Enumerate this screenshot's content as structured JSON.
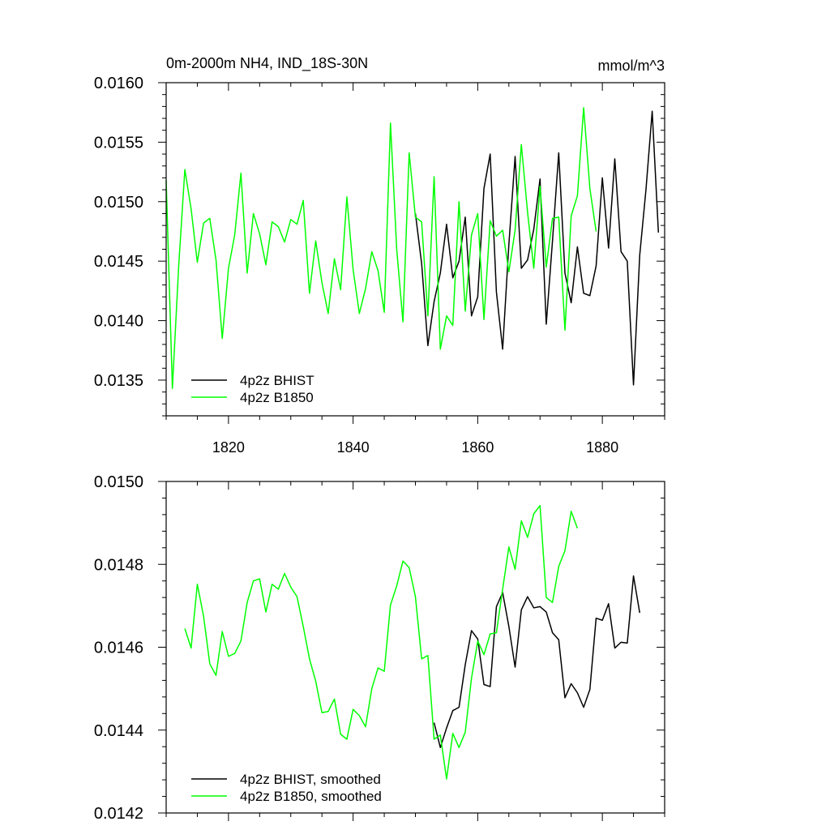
{
  "chart_data": [
    {
      "type": "line",
      "title": "0m-2000m NH4, IND_18S-30N",
      "units_label": "mmol/m^3",
      "xlabel": "",
      "ylabel": "",
      "xlim": [
        1810,
        1890
      ],
      "ylim": [
        0.0132,
        0.016
      ],
      "x_ticks": [
        1820,
        1840,
        1860,
        1880
      ],
      "x_tick_labels": [
        "1820",
        "1840",
        "1860",
        "1880"
      ],
      "y_ticks": [
        0.0135,
        0.014,
        0.0145,
        0.015,
        0.0155,
        0.016
      ],
      "y_tick_labels": [
        "0.0135",
        "0.0140",
        "0.0145",
        "0.0150",
        "0.0155",
        "0.0160"
      ],
      "grid": false,
      "legend_position": "bottom-left",
      "series": [
        {
          "name": "4p2z BHIST",
          "color": "#000000",
          "x_start": 1850,
          "values": [
            0.0149,
            0.01448,
            0.01379,
            0.01416,
            0.0144,
            0.01481,
            0.01436,
            0.0145,
            0.01487,
            0.01404,
            0.0142,
            0.01511,
            0.0154,
            0.01424,
            0.01376,
            0.01464,
            0.01538,
            0.01444,
            0.01451,
            0.01477,
            0.01519,
            0.01397,
            0.01467,
            0.01541,
            0.0144,
            0.01415,
            0.01462,
            0.01423,
            0.01421,
            0.01446,
            0.0152,
            0.01461,
            0.01536,
            0.01458,
            0.0145,
            0.01346,
            0.01455,
            0.0151,
            0.01576,
            0.01474
          ]
        },
        {
          "name": "4p2z B1850",
          "color": "#00ff00",
          "x_start": 1810,
          "values": [
            0.01518,
            0.01343,
            0.01445,
            0.01527,
            0.01494,
            0.01449,
            0.01482,
            0.01486,
            0.01451,
            0.01385,
            0.01444,
            0.01472,
            0.01524,
            0.0144,
            0.0149,
            0.01473,
            0.01447,
            0.01483,
            0.01479,
            0.01466,
            0.01485,
            0.01481,
            0.01501,
            0.01423,
            0.01467,
            0.01432,
            0.01406,
            0.01452,
            0.01426,
            0.01504,
            0.01443,
            0.01406,
            0.01427,
            0.01458,
            0.01442,
            0.01407,
            0.01566,
            0.0146,
            0.01399,
            0.01541,
            0.01487,
            0.01483,
            0.01404,
            0.01521,
            0.01376,
            0.01404,
            0.01396,
            0.015,
            0.01408,
            0.01472,
            0.0149,
            0.01401,
            0.01484,
            0.01471,
            0.01476,
            0.01441,
            0.01476,
            0.01548,
            0.01491,
            0.01444,
            0.01513,
            0.01445,
            0.01486,
            0.01487,
            0.01392,
            0.01488,
            0.01505,
            0.01579,
            0.01511,
            0.01475
          ]
        }
      ]
    },
    {
      "type": "line",
      "title": "",
      "xlabel": "",
      "ylabel": "",
      "xlim": [
        1810,
        1890
      ],
      "ylim": [
        0.0142,
        0.015
      ],
      "x_ticks": [
        1820,
        1840,
        1860,
        1880
      ],
      "x_tick_labels": [],
      "y_ticks": [
        0.0142,
        0.0144,
        0.0146,
        0.0148,
        0.015
      ],
      "y_tick_labels": [
        "0.0142",
        "0.0144",
        "0.0146",
        "0.0148",
        "0.0150"
      ],
      "grid": false,
      "legend_position": "bottom-left",
      "series": [
        {
          "name": "4p2z BHIST, smoothed",
          "color": "#000000",
          "x_start": 1853,
          "values": [
            0.014418,
            0.014358,
            0.014405,
            0.014447,
            0.014455,
            0.014558,
            0.01464,
            0.01462,
            0.01451,
            0.014505,
            0.014698,
            0.014732,
            0.01465,
            0.014552,
            0.01469,
            0.014722,
            0.014695,
            0.014698,
            0.014685,
            0.014635,
            0.014618,
            0.014478,
            0.014512,
            0.01449,
            0.014455,
            0.014498,
            0.01467,
            0.014665,
            0.014705,
            0.014598,
            0.014612,
            0.01461,
            0.014772,
            0.014683
          ]
        },
        {
          "name": "4p2z B1850, smoothed",
          "color": "#00ff00",
          "x_start": 1813,
          "values": [
            0.014645,
            0.014598,
            0.014752,
            0.014675,
            0.01456,
            0.014532,
            0.014638,
            0.014578,
            0.014585,
            0.014615,
            0.014708,
            0.01476,
            0.014765,
            0.014685,
            0.014752,
            0.01474,
            0.014778,
            0.014745,
            0.014722,
            0.01465,
            0.014572,
            0.014518,
            0.014442,
            0.014445,
            0.014475,
            0.01439,
            0.014378,
            0.01445,
            0.014435,
            0.014408,
            0.0145,
            0.01455,
            0.014542,
            0.014702,
            0.014748,
            0.014808,
            0.014792,
            0.014722,
            0.014572,
            0.01458,
            0.014378,
            0.014388,
            0.014282,
            0.014392,
            0.014358,
            0.014395,
            0.014525,
            0.014615,
            0.014582,
            0.014632,
            0.014635,
            0.01474,
            0.014842,
            0.014788,
            0.014905,
            0.014865,
            0.014922,
            0.014942,
            0.01472,
            0.014708,
            0.014795,
            0.014833,
            0.014928,
            0.014887
          ]
        }
      ]
    }
  ]
}
